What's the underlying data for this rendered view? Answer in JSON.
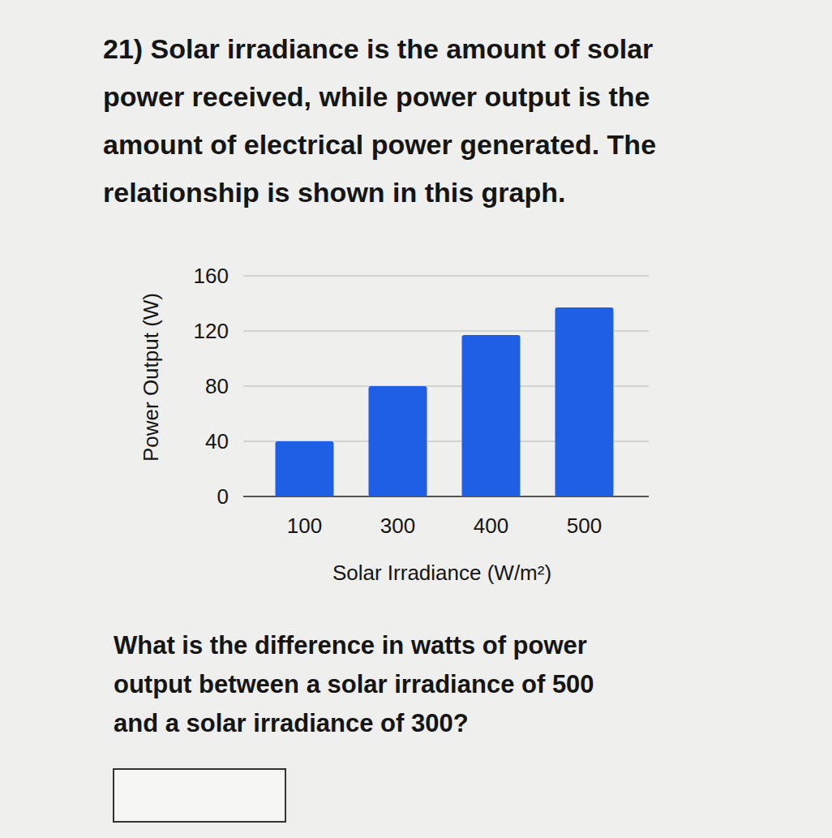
{
  "intro": [
    "21) Solar irradiance is the amount of solar",
    "power received, while power output is the",
    "amount of electrical power generated. The",
    "relationship is shown in this graph."
  ],
  "chart_data": {
    "type": "bar",
    "categories": [
      "100",
      "300",
      "400",
      "500"
    ],
    "values": [
      40,
      80,
      117,
      137
    ],
    "color": "#1f5fe6",
    "ylim": [
      0,
      160
    ],
    "yticks": [
      0,
      40,
      80,
      120,
      160
    ],
    "grid": true,
    "xlabel": "Solar Irradiance (W/m²)",
    "ylabel": "Power Output (W)"
  },
  "question": [
    "What is the difference in watts of power",
    "output between a solar irradiance of 500",
    "and a solar irradiance of 300?"
  ]
}
